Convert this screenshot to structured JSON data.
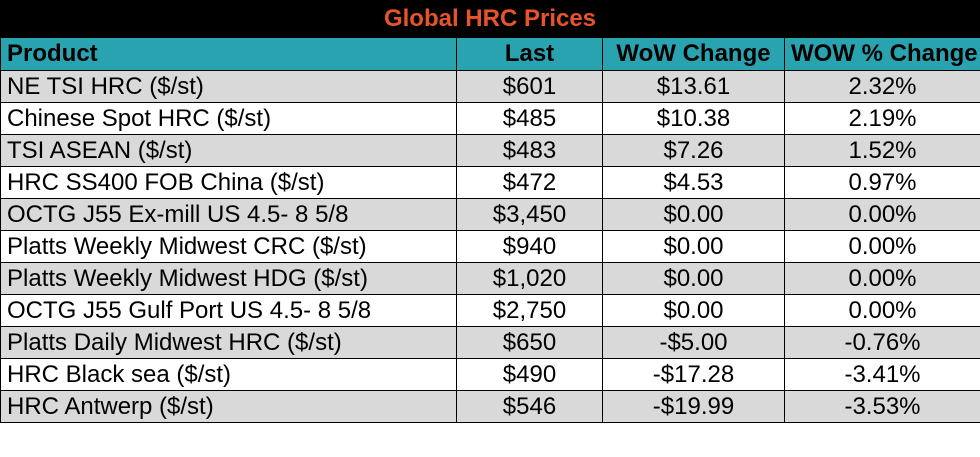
{
  "chart_data": {
    "type": "table",
    "title": "Global HRC Prices",
    "columns": [
      "Product",
      "Last",
      "WoW Change",
      "WOW % Change"
    ],
    "rows": [
      {
        "product": "NE TSI HRC ($/st)",
        "last": "$601",
        "wow_change": "$13.61",
        "wow_pct": "2.32%"
      },
      {
        "product": "Chinese Spot HRC ($/st)",
        "last": "$485",
        "wow_change": "$10.38",
        "wow_pct": "2.19%"
      },
      {
        "product": "TSI ASEAN ($/st)",
        "last": "$483",
        "wow_change": "$7.26",
        "wow_pct": "1.52%"
      },
      {
        "product": "HRC SS400 FOB China ($/st)",
        "last": "$472",
        "wow_change": "$4.53",
        "wow_pct": "0.97%"
      },
      {
        "product": "OCTG J55 Ex-mill US 4.5- 8 5/8",
        "last": "$3,450",
        "wow_change": "$0.00",
        "wow_pct": "0.00%"
      },
      {
        "product": "Platts Weekly Midwest CRC ($/st)",
        "last": "$940",
        "wow_change": "$0.00",
        "wow_pct": "0.00%"
      },
      {
        "product": "Platts Weekly Midwest HDG ($/st)",
        "last": "$1,020",
        "wow_change": "$0.00",
        "wow_pct": "0.00%"
      },
      {
        "product": "OCTG J55 Gulf Port US 4.5- 8 5/8",
        "last": "$2,750",
        "wow_change": "$0.00",
        "wow_pct": "0.00%"
      },
      {
        "product": "Platts Daily Midwest HRC ($/st)",
        "last": "$650",
        "wow_change": "-$5.00",
        "wow_pct": "-0.76%"
      },
      {
        "product": "HRC Black sea ($/st)",
        "last": "$490",
        "wow_change": "-$17.28",
        "wow_pct": "-3.41%"
      },
      {
        "product": "HRC Antwerp ($/st)",
        "last": "$546",
        "wow_change": "-$19.99",
        "wow_pct": "-3.53%"
      }
    ]
  },
  "colors": {
    "title_bg": "#000000",
    "title_text": "#e8542a",
    "header_bg": "#2aa3b0",
    "row_shade": "#d9d9d9",
    "row_plain": "#ffffff"
  }
}
